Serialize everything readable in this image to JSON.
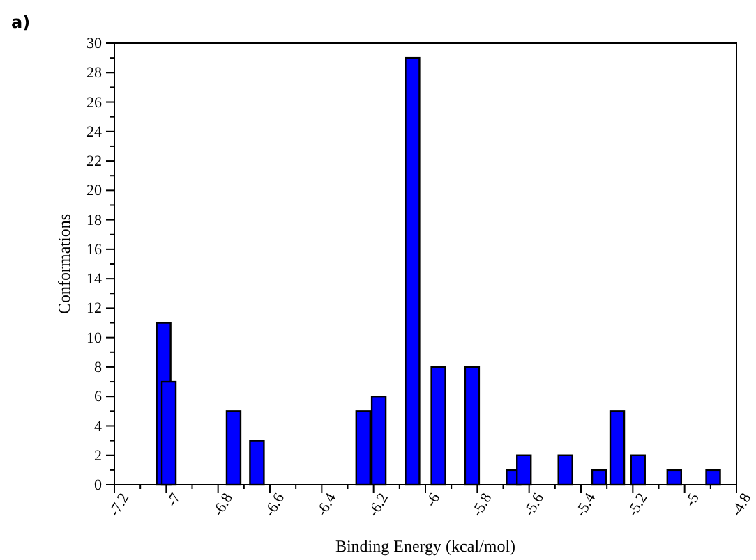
{
  "chart_data": {
    "type": "bar",
    "title": "a)",
    "xlabel": "Binding Energy (kcal/mol)",
    "ylabel": "Conformations",
    "x": [
      -7.01,
      -6.99,
      -6.74,
      -6.65,
      -6.24,
      -6.18,
      -6.05,
      -5.95,
      -5.82,
      -5.66,
      -5.62,
      -5.46,
      -5.33,
      -5.26,
      -5.18,
      -5.04,
      -4.89
    ],
    "values": [
      11,
      7,
      5,
      3,
      5,
      6,
      29,
      8,
      8,
      1,
      2,
      2,
      1,
      5,
      2,
      1,
      1
    ],
    "color": "#0000ff",
    "xlim": [
      -7.2,
      -4.8
    ],
    "xticks": [
      -7.2,
      {
        "value": -7.1,
        "label": null
      },
      -7,
      {
        "value": -6.9,
        "label": null
      },
      -6.8,
      {
        "value": -6.7,
        "label": null
      },
      -6.6,
      {
        "value": -6.5,
        "label": null
      },
      -6.4,
      {
        "value": -6.3,
        "label": null
      },
      -6.2,
      {
        "value": -6.1,
        "label": null
      },
      -6,
      {
        "value": -5.9,
        "label": null
      },
      -5.8,
      {
        "value": -5.7,
        "label": null
      },
      -5.6,
      {
        "value": -5.5,
        "label": null
      },
      -5.4,
      {
        "value": -5.3,
        "label": null
      },
      -5.2,
      {
        "value": -5.1,
        "label": null
      },
      -5,
      {
        "value": -4.9,
        "label": null
      },
      -4.8
    ],
    "ylim": [
      0,
      30
    ],
    "yticks": [
      0,
      {
        "value": 1,
        "label": null
      },
      2,
      {
        "value": 3,
        "label": null
      },
      4,
      {
        "value": 5,
        "label": null
      },
      6,
      {
        "value": 7,
        "label": null
      },
      8,
      {
        "value": 9,
        "label": null
      },
      10,
      {
        "value": 11,
        "label": null
      },
      12,
      {
        "value": 13,
        "label": null
      },
      14,
      {
        "value": 15,
        "label": null
      },
      16,
      {
        "value": 17,
        "label": null
      },
      18,
      {
        "value": 19,
        "label": null
      },
      20,
      {
        "value": 21,
        "label": null
      },
      22,
      {
        "value": 23,
        "label": null
      },
      24,
      {
        "value": 25,
        "label": null
      },
      26,
      {
        "value": 27,
        "label": null
      },
      28,
      {
        "value": 29,
        "label": null
      },
      30
    ],
    "grid": false
  }
}
